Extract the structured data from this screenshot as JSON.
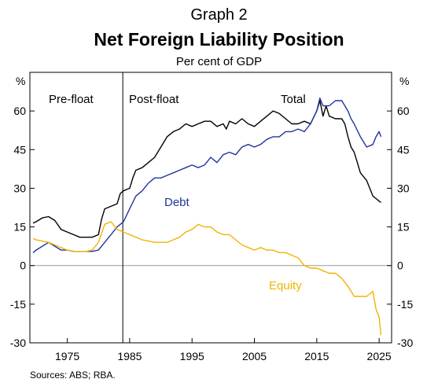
{
  "header": {
    "graph_label": "Graph 2",
    "title": "Net Foreign Liability Position",
    "subtitle": "Per cent of GDP"
  },
  "source": "Sources: ABS; RBA.",
  "colors": {
    "total": "#000000",
    "debt": "#1f35a0",
    "equity": "#f0b400",
    "axis": "#000000",
    "zero_line": "#b0b0b0"
  },
  "chart_data": {
    "type": "line",
    "title": "Net Foreign Liability Position",
    "subtitle": "Per cent of GDP",
    "ylabel_left": "%",
    "ylabel_right": "%",
    "ylim": [
      -30,
      75
    ],
    "yticks": [
      -30,
      -15,
      0,
      15,
      30,
      45,
      60
    ],
    "xlim": [
      1969,
      2027
    ],
    "xticks": [
      1975,
      1985,
      1995,
      2005,
      2015,
      2025
    ],
    "grid": false,
    "annotations": {
      "pre_float": "Pre-float",
      "post_float": "Post-float",
      "float_year": 1983.9
    },
    "series": [
      {
        "name": "Total",
        "color": "#000000",
        "x": [
          1969.5,
          1970,
          1971,
          1972,
          1973,
          1974,
          1975,
          1976,
          1977,
          1978,
          1979,
          1980,
          1980.5,
          1981,
          1982,
          1983,
          1983.5,
          1984,
          1985,
          1985.5,
          1986,
          1987,
          1988,
          1989,
          1990,
          1991,
          1992,
          1993,
          1994,
          1995,
          1996,
          1997,
          1998,
          1999,
          2000,
          2000.5,
          2001,
          2002,
          2003,
          2004,
          2005,
          2006,
          2007,
          2008,
          2009,
          2010,
          2011,
          2012,
          2013,
          2014,
          2015,
          2015.5,
          2016,
          2016.5,
          2017,
          2018,
          2019,
          2019.5,
          2020,
          2020.5,
          2021,
          2021.5,
          2022,
          2023,
          2023.5,
          2024,
          2024.5,
          2025,
          2025.3
        ],
        "y": [
          16.5,
          17,
          18.5,
          19,
          17.5,
          14,
          13,
          12,
          11,
          11,
          11,
          12,
          18,
          22,
          23,
          24,
          28,
          29,
          30,
          34,
          37,
          38,
          40,
          42,
          46,
          50,
          52,
          53,
          55,
          54,
          55,
          56,
          56,
          54,
          55,
          53,
          56,
          55,
          57,
          55,
          54,
          56,
          58,
          60,
          59,
          57,
          55,
          55,
          56,
          55,
          60,
          64,
          58,
          62,
          58,
          57,
          57,
          55,
          50,
          46,
          44,
          40,
          36,
          33,
          30,
          27,
          26,
          25,
          24.5
        ]
      },
      {
        "name": "Debt",
        "color": "#1f35a0",
        "x": [
          1969.5,
          1970,
          1971,
          1972,
          1973,
          1974,
          1975,
          1976,
          1977,
          1978,
          1979,
          1980,
          1981,
          1982,
          1983,
          1983.5,
          1984,
          1985,
          1986,
          1987,
          1988,
          1989,
          1990,
          1991,
          1992,
          1993,
          1994,
          1995,
          1996,
          1997,
          1998,
          1999,
          2000,
          2001,
          2002,
          2003,
          2004,
          2005,
          2006,
          2007,
          2008,
          2009,
          2010,
          2011,
          2012,
          2013,
          2014,
          2015,
          2015.5,
          2016,
          2017,
          2018,
          2019,
          2020,
          2020.5,
          2021,
          2022,
          2023,
          2024,
          2024.5,
          2025,
          2025.3
        ],
        "y": [
          5,
          6,
          7.5,
          9,
          7.5,
          6,
          6,
          5.5,
          5.5,
          5.5,
          5.5,
          6,
          9,
          12,
          15,
          16,
          17,
          22,
          27,
          29,
          32,
          34,
          34,
          35,
          36,
          37,
          38,
          39,
          38,
          39,
          42,
          40,
          43,
          44,
          43,
          46,
          47,
          46,
          47,
          49,
          50,
          50,
          52,
          52,
          53,
          52,
          55,
          60,
          65,
          62,
          62,
          64,
          64,
          60,
          57,
          55,
          50,
          46,
          47,
          50,
          52,
          50
        ]
      },
      {
        "name": "Equity",
        "color": "#f0b400",
        "x": [
          1969.5,
          1970,
          1971,
          1972,
          1973,
          1974,
          1975,
          1976,
          1977,
          1978,
          1979,
          1980,
          1981,
          1982,
          1983,
          1984,
          1985,
          1986,
          1987,
          1988,
          1989,
          1990,
          1991,
          1992,
          1993,
          1994,
          1995,
          1996,
          1997,
          1998,
          1999,
          2000,
          2001,
          2002,
          2003,
          2004,
          2005,
          2006,
          2007,
          2008,
          2009,
          2010,
          2011,
          2012,
          2013,
          2014,
          2015,
          2016,
          2017,
          2018,
          2019,
          2020,
          2021,
          2022,
          2023,
          2024,
          2024.5,
          2025,
          2025.3
        ],
        "y": [
          10.5,
          10,
          9.5,
          9,
          8,
          7,
          6,
          5.5,
          5.5,
          5.5,
          6,
          9,
          16,
          17,
          14,
          13,
          12,
          11,
          10,
          9.5,
          9,
          9,
          9,
          10,
          11,
          13,
          14,
          16,
          15,
          15,
          13,
          12,
          12,
          10,
          8,
          7,
          6,
          7,
          6,
          6,
          5,
          5,
          4,
          3,
          0,
          -1,
          -1,
          -2,
          -3,
          -3,
          -5,
          -8,
          -12,
          -12,
          -12,
          -10,
          -17,
          -20,
          -27
        ]
      }
    ],
    "series_labels": {
      "total": "Total",
      "debt": "Debt",
      "equity": "Equity"
    }
  }
}
